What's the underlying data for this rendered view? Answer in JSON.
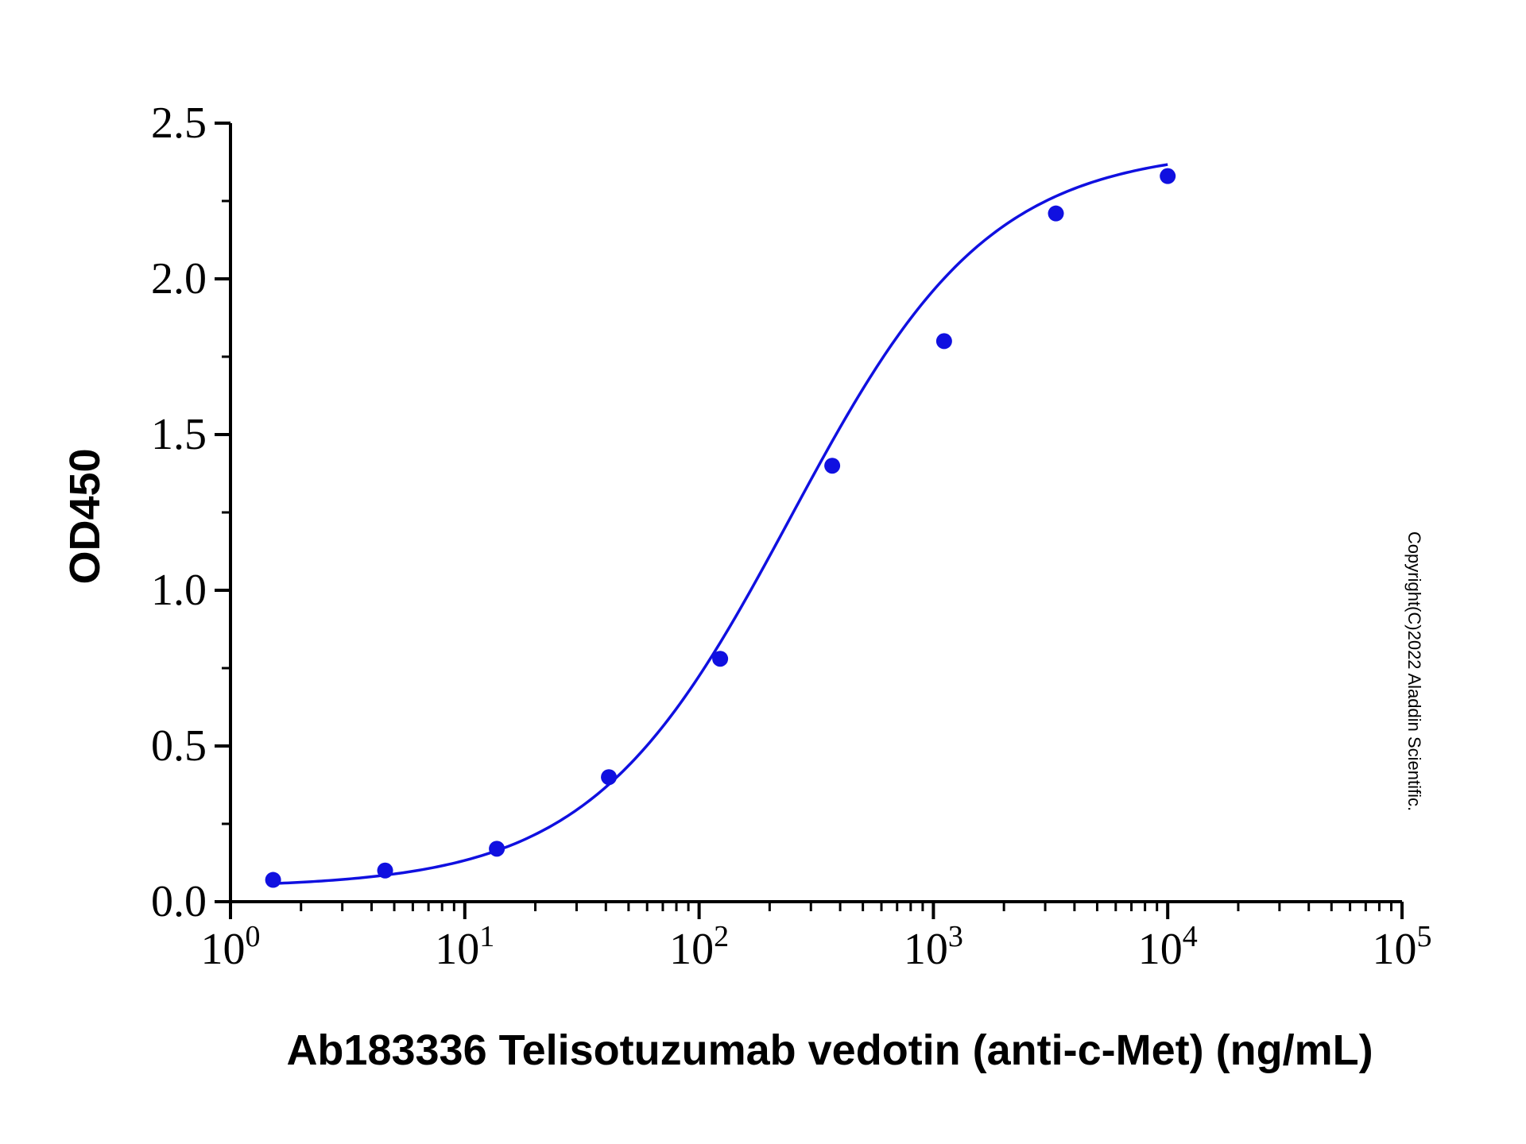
{
  "chart_data": {
    "type": "scatter",
    "xlabel": "Ab183336 Telisotuzumab vedotin (anti-c-Met) (ng/mL)",
    "ylabel": "OD450",
    "x_scale": "log",
    "xlim": [
      1,
      100000
    ],
    "ylim": [
      0.0,
      2.5
    ],
    "x_ticks": [
      1,
      10,
      100,
      1000,
      10000,
      100000
    ],
    "x_tick_labels": [
      {
        "base": "10",
        "exp": "0"
      },
      {
        "base": "10",
        "exp": "1"
      },
      {
        "base": "10",
        "exp": "2"
      },
      {
        "base": "10",
        "exp": "3"
      },
      {
        "base": "10",
        "exp": "4"
      },
      {
        "base": "10",
        "exp": "5"
      }
    ],
    "y_ticks": [
      0.0,
      0.5,
      1.0,
      1.5,
      2.0,
      2.5
    ],
    "y_tick_labels": [
      "0.0",
      "0.5",
      "1.0",
      "1.5",
      "2.0",
      "2.5"
    ],
    "series": [
      {
        "x": [
          1.52,
          4.57,
          13.7,
          41.2,
          123,
          370,
          1111,
          3333,
          10000
        ],
        "y": [
          0.07,
          0.1,
          0.17,
          0.4,
          0.78,
          1.4,
          1.8,
          2.21,
          2.33
        ],
        "fit": "4PL",
        "color": "#1010e0"
      }
    ],
    "grid": false,
    "legend": "none"
  },
  "copyright": "Copyright(C)2022 Aladdin Scientific."
}
